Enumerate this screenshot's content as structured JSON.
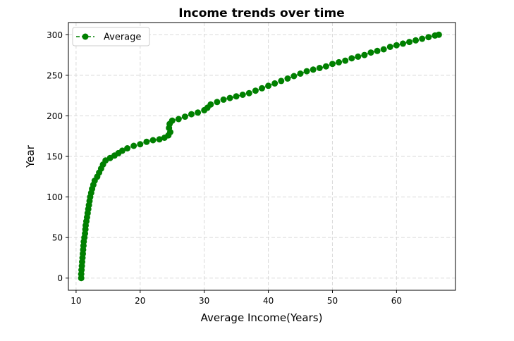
{
  "chart_data": {
    "type": "line",
    "title": "Income trends over time",
    "xlabel": "Average Income(Years)",
    "ylabel": "Year",
    "xlim": [
      8.8,
      69.2
    ],
    "ylim": [
      -15,
      315
    ],
    "x_ticks": [
      10,
      20,
      30,
      40,
      50,
      60
    ],
    "y_ticks": [
      0,
      50,
      100,
      150,
      200,
      250,
      300
    ],
    "grid": true,
    "legend_position": "upper-left",
    "series": [
      {
        "name": "Average",
        "color": "#008000",
        "line_style": "dashed",
        "marker": "circle",
        "points": [
          [
            10.8,
            0
          ],
          [
            10.8,
            5
          ],
          [
            10.85,
            10
          ],
          [
            10.9,
            15
          ],
          [
            10.95,
            20
          ],
          [
            11.0,
            25
          ],
          [
            11.05,
            30
          ],
          [
            11.1,
            35
          ],
          [
            11.15,
            40
          ],
          [
            11.2,
            45
          ],
          [
            11.3,
            50
          ],
          [
            11.4,
            55
          ],
          [
            11.45,
            60
          ],
          [
            11.5,
            65
          ],
          [
            11.6,
            70
          ],
          [
            11.7,
            75
          ],
          [
            11.8,
            80
          ],
          [
            11.9,
            85
          ],
          [
            12.0,
            90
          ],
          [
            12.1,
            95
          ],
          [
            12.2,
            100
          ],
          [
            12.35,
            105
          ],
          [
            12.5,
            110
          ],
          [
            12.7,
            115
          ],
          [
            12.9,
            120
          ],
          [
            13.3,
            125
          ],
          [
            13.6,
            130
          ],
          [
            13.9,
            135
          ],
          [
            14.2,
            140
          ],
          [
            14.6,
            145
          ],
          [
            15.3,
            148
          ],
          [
            16.0,
            151
          ],
          [
            16.6,
            154
          ],
          [
            17.2,
            157
          ],
          [
            18.0,
            160
          ],
          [
            19.0,
            163
          ],
          [
            20.0,
            165
          ],
          [
            21.0,
            168
          ],
          [
            22.0,
            170
          ],
          [
            23.0,
            171
          ],
          [
            23.8,
            173
          ],
          [
            24.4,
            176
          ],
          [
            24.7,
            180
          ],
          [
            24.5,
            185
          ],
          [
            24.6,
            190
          ],
          [
            25.0,
            194
          ],
          [
            26.0,
            196
          ],
          [
            27.0,
            199
          ],
          [
            28.0,
            202
          ],
          [
            29.0,
            204
          ],
          [
            30.0,
            207
          ],
          [
            30.5,
            210
          ],
          [
            31.0,
            214
          ],
          [
            32.0,
            217
          ],
          [
            33.0,
            220
          ],
          [
            34.0,
            222
          ],
          [
            35.0,
            224
          ],
          [
            36.0,
            226
          ],
          [
            37.0,
            228
          ],
          [
            38.0,
            231
          ],
          [
            39.0,
            234
          ],
          [
            40.0,
            237
          ],
          [
            41.0,
            240
          ],
          [
            42.0,
            243
          ],
          [
            43.0,
            246
          ],
          [
            44.0,
            249
          ],
          [
            45.0,
            252
          ],
          [
            46.0,
            255
          ],
          [
            47.0,
            257
          ],
          [
            48.0,
            259
          ],
          [
            49.0,
            261
          ],
          [
            50.0,
            264
          ],
          [
            51.0,
            266
          ],
          [
            52.0,
            268
          ],
          [
            53.0,
            271
          ],
          [
            54.0,
            273
          ],
          [
            55.0,
            275
          ],
          [
            56.0,
            278
          ],
          [
            57.0,
            280
          ],
          [
            58.0,
            282
          ],
          [
            59.0,
            285
          ],
          [
            60.0,
            287
          ],
          [
            61.0,
            289
          ],
          [
            62.0,
            291
          ],
          [
            63.0,
            293
          ],
          [
            64.0,
            295
          ],
          [
            65.0,
            297
          ],
          [
            66.0,
            299
          ],
          [
            66.6,
            300
          ]
        ]
      }
    ]
  }
}
